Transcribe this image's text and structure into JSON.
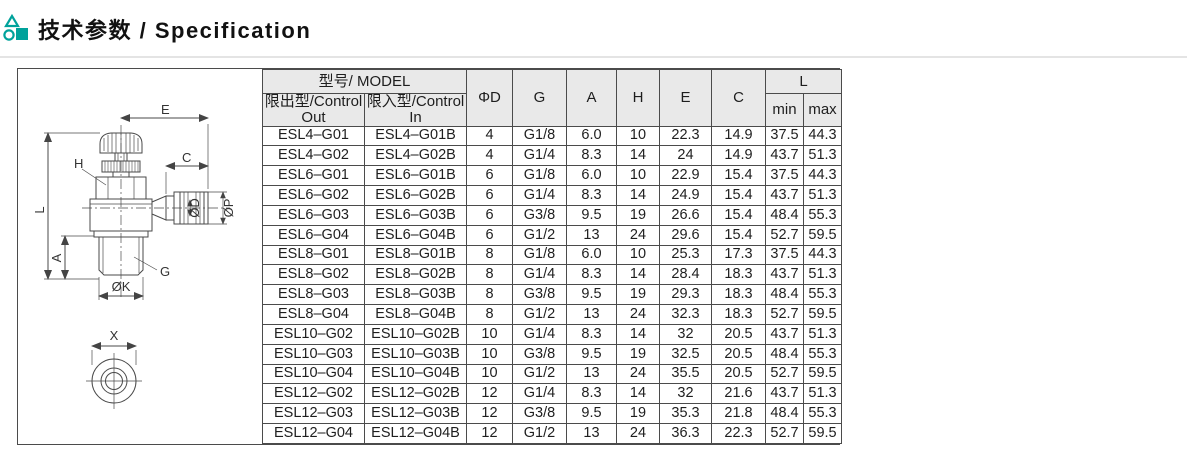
{
  "page": {
    "title": "技术参数 / Specification"
  },
  "colors": {
    "accent": "#00A29B",
    "table_border": "#4b4b4b",
    "cell_bg": "#e9e9e9",
    "rule": "#e4e4e4"
  },
  "drawing": {
    "labels": {
      "e": "E",
      "c": "C",
      "h": "H",
      "l": "L",
      "a": "A",
      "g": "G",
      "ok": "ØK",
      "od": "ØD",
      "op": "ØP",
      "x": "X"
    }
  },
  "table": {
    "header": {
      "model_group": "型号/ MODEL",
      "control_out": "限出型/Control Out",
      "control_in": "限入型/Control In",
      "col_d": "ΦD",
      "col_g": "G",
      "col_a": "A",
      "col_h": "H",
      "col_e": "E",
      "col_c": "C",
      "l_group": "L",
      "l_min": "min",
      "l_max": "max"
    },
    "rows": [
      [
        "ESL4–G01",
        "ESL4–G01B",
        "4",
        "G1/8",
        "6.0",
        "10",
        "22.3",
        "14.9",
        "37.5",
        "44.3"
      ],
      [
        "ESL4–G02",
        "ESL4–G02B",
        "4",
        "G1/4",
        "8.3",
        "14",
        "24",
        "14.9",
        "43.7",
        "51.3"
      ],
      [
        "ESL6–G01",
        "ESL6–G01B",
        "6",
        "G1/8",
        "6.0",
        "10",
        "22.9",
        "15.4",
        "37.5",
        "44.3"
      ],
      [
        "ESL6–G02",
        "ESL6–G02B",
        "6",
        "G1/4",
        "8.3",
        "14",
        "24.9",
        "15.4",
        "43.7",
        "51.3"
      ],
      [
        "ESL6–G03",
        "ESL6–G03B",
        "6",
        "G3/8",
        "9.5",
        "19",
        "26.6",
        "15.4",
        "48.4",
        "55.3"
      ],
      [
        "ESL6–G04",
        "ESL6–G04B",
        "6",
        "G1/2",
        "13",
        "24",
        "29.6",
        "15.4",
        "52.7",
        "59.5"
      ],
      [
        "ESL8–G01",
        "ESL8–G01B",
        "8",
        "G1/8",
        "6.0",
        "10",
        "25.3",
        "17.3",
        "37.5",
        "44.3"
      ],
      [
        "ESL8–G02",
        "ESL8–G02B",
        "8",
        "G1/4",
        "8.3",
        "14",
        "28.4",
        "18.3",
        "43.7",
        "51.3"
      ],
      [
        "ESL8–G03",
        "ESL8–G03B",
        "8",
        "G3/8",
        "9.5",
        "19",
        "29.3",
        "18.3",
        "48.4",
        "55.3"
      ],
      [
        "ESL8–G04",
        "ESL8–G04B",
        "8",
        "G1/2",
        "13",
        "24",
        "32.3",
        "18.3",
        "52.7",
        "59.5"
      ],
      [
        "ESL10–G02",
        "ESL10–G02B",
        "10",
        "G1/4",
        "8.3",
        "14",
        "32",
        "20.5",
        "43.7",
        "51.3"
      ],
      [
        "ESL10–G03",
        "ESL10–G03B",
        "10",
        "G3/8",
        "9.5",
        "19",
        "32.5",
        "20.5",
        "48.4",
        "55.3"
      ],
      [
        "ESL10–G04",
        "ESL10–G04B",
        "10",
        "G1/2",
        "13",
        "24",
        "35.5",
        "20.5",
        "52.7",
        "59.5"
      ],
      [
        "ESL12–G02",
        "ESL12–G02B",
        "12",
        "G1/4",
        "8.3",
        "14",
        "32",
        "21.6",
        "43.7",
        "51.3"
      ],
      [
        "ESL12–G03",
        "ESL12–G03B",
        "12",
        "G3/8",
        "9.5",
        "19",
        "35.3",
        "21.8",
        "48.4",
        "55.3"
      ],
      [
        "ESL12–G04",
        "ESL12–G04B",
        "12",
        "G1/2",
        "13",
        "24",
        "36.3",
        "22.3",
        "52.7",
        "59.5"
      ]
    ]
  }
}
